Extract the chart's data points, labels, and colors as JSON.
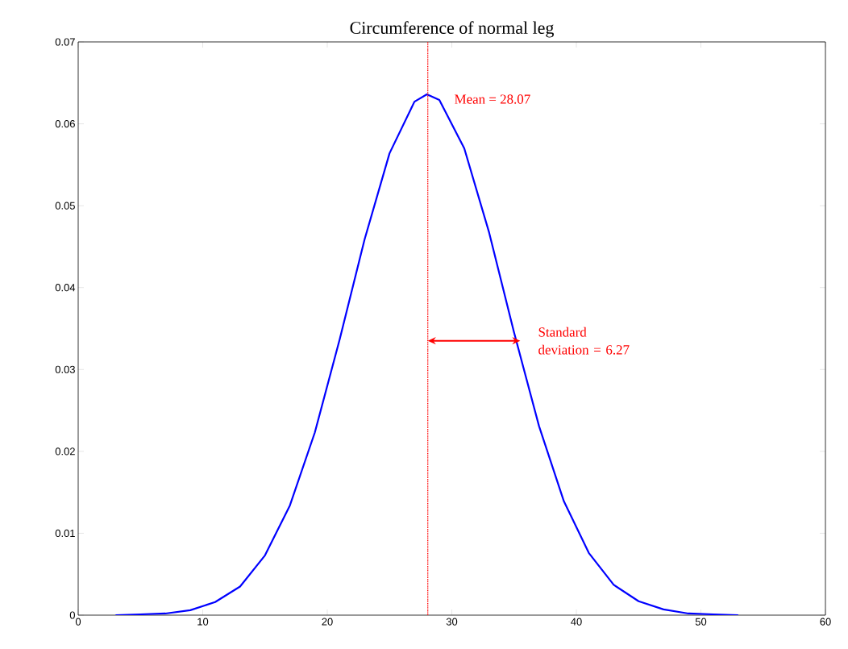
{
  "chart_data": {
    "type": "line",
    "title": "Circumference of normal leg",
    "x": [
      3,
      5,
      7,
      9,
      11,
      13,
      15,
      17,
      19,
      21,
      23,
      25,
      27,
      28,
      29,
      31,
      33,
      35,
      37,
      39,
      41,
      43,
      45,
      47,
      49,
      51,
      53
    ],
    "values": [
      0.0,
      0.0001,
      0.0002,
      0.0006,
      0.0016,
      0.0035,
      0.0073,
      0.0134,
      0.0223,
      0.0337,
      0.0459,
      0.0564,
      0.0627,
      0.0636,
      0.0629,
      0.057,
      0.0467,
      0.0345,
      0.0231,
      0.0139,
      0.0076,
      0.0037,
      0.0017,
      0.0007,
      0.0002,
      0.0001,
      0.0
    ],
    "color": "#0000ff",
    "xlim": [
      0,
      60
    ],
    "ylim": [
      0,
      0.07
    ],
    "xticks": [
      0,
      10,
      20,
      30,
      40,
      50,
      60
    ],
    "yticks": [
      0,
      0.01,
      0.02,
      0.03,
      0.04,
      0.05,
      0.06,
      0.07
    ],
    "ref_lines": [
      {
        "axis": "x",
        "value": 28.07,
        "label": "Mean = 28.07",
        "color": "#ff0000",
        "line_style": "dotted"
      }
    ],
    "annotations": [
      {
        "text": "Standard deviation = 6.27",
        "x": 35.5,
        "y": 0.0335
      }
    ],
    "grid": false,
    "marker": "none",
    "line_style": "solid"
  }
}
